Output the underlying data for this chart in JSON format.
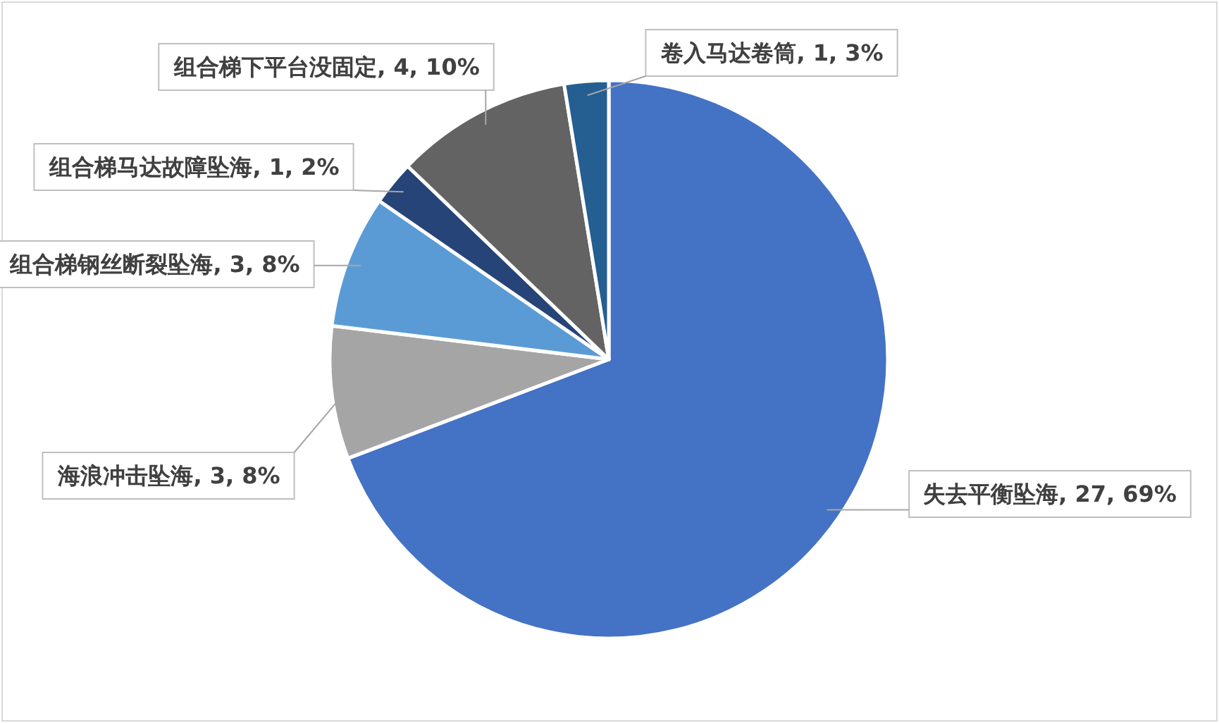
{
  "chart_data": {
    "type": "pie",
    "categories": [
      "失去平衡坠海",
      "海浪冲击坠海",
      "组合梯钢丝断裂坠海",
      "组合梯马达故障坠海",
      "组合梯下平台没固定",
      "卷入马达卷筒"
    ],
    "values": [
      27,
      3,
      3,
      1,
      4,
      1
    ],
    "value_labels": [
      "27, 69%",
      "3, 8%",
      "3, 8%",
      "1, 2%",
      "4, 10%",
      "1, 3%"
    ],
    "colors": [
      "#4472c4",
      "#a5a5a5",
      "#5b9bd5",
      "#264478",
      "#636363",
      "#255e91"
    ],
    "legend": false
  }
}
